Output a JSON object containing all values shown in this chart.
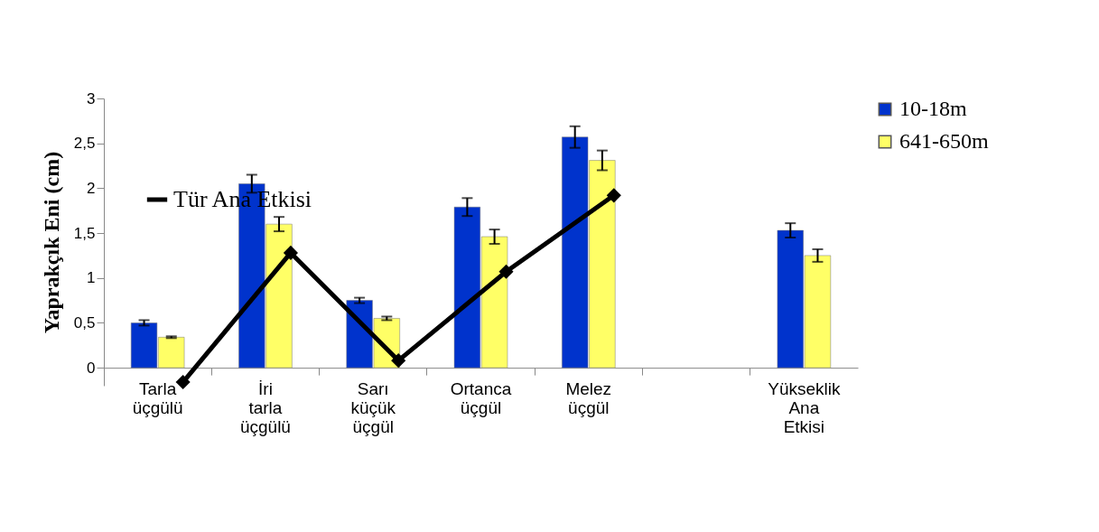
{
  "chart_data": {
    "type": "bar",
    "ylabel": "Yaprakçık Eni (cm)",
    "categories": [
      "Tarla üçgülü",
      "İri tarla üçgülü",
      "Sarı küçük üçgül",
      "Ortanca üçgül",
      "Melez üçgül",
      null,
      "Yükseklik Ana Etkisi"
    ],
    "series": [
      {
        "name": "10-18m",
        "color": "#0033cc",
        "values": [
          0.5,
          2.05,
          0.75,
          1.79,
          2.57,
          null,
          1.53
        ],
        "errors": [
          0.03,
          0.1,
          0.03,
          0.1,
          0.12,
          null,
          0.08
        ]
      },
      {
        "name": "641-650m",
        "color": "#ffff66",
        "values": [
          0.34,
          1.6,
          0.55,
          1.46,
          2.31,
          null,
          1.25
        ],
        "errors": [
          0.01,
          0.08,
          0.02,
          0.08,
          0.11,
          null,
          0.07
        ]
      },
      {
        "name": "Tür Ana Etkisi",
        "type": "line",
        "color": "#000000",
        "marker": "diamond",
        "values": [
          -0.16,
          1.28,
          0.08,
          1.07,
          1.92,
          null,
          null
        ]
      }
    ],
    "ylim": [
      -0.2,
      3
    ],
    "yticks": [
      {
        "value": 0,
        "label": "0"
      },
      {
        "value": 0.5,
        "label": "0,5"
      },
      {
        "value": 1,
        "label": "1"
      },
      {
        "value": 1.5,
        "label": "1,5"
      },
      {
        "value": 2,
        "label": "2"
      },
      {
        "value": 2.5,
        "label": "2,5"
      },
      {
        "value": 3,
        "label": "3"
      }
    ],
    "grid": false,
    "legend": "right"
  }
}
